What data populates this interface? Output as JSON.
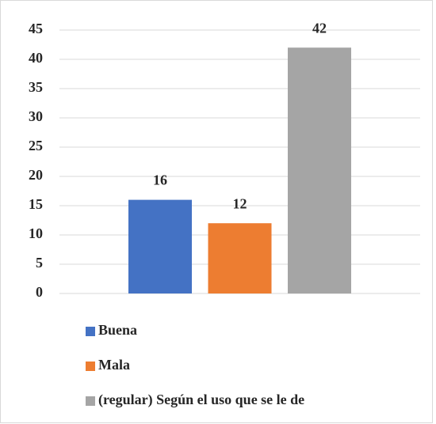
{
  "chart_data": {
    "type": "bar",
    "series": [
      {
        "name": "Buena",
        "color": "#4472c4",
        "values": [
          16
        ]
      },
      {
        "name": "Mala",
        "color": "#ed7d31",
        "values": [
          12
        ]
      },
      {
        "name": "(regular) Según el uso que se le de",
        "color": "#a5a5a5",
        "values": [
          42
        ]
      }
    ],
    "ylim": [
      0,
      45
    ],
    "yticks": [
      0,
      5,
      10,
      15,
      20,
      25,
      30,
      35,
      40,
      45
    ],
    "grid": true,
    "value_labels_shown": true,
    "legend": "bottom"
  }
}
